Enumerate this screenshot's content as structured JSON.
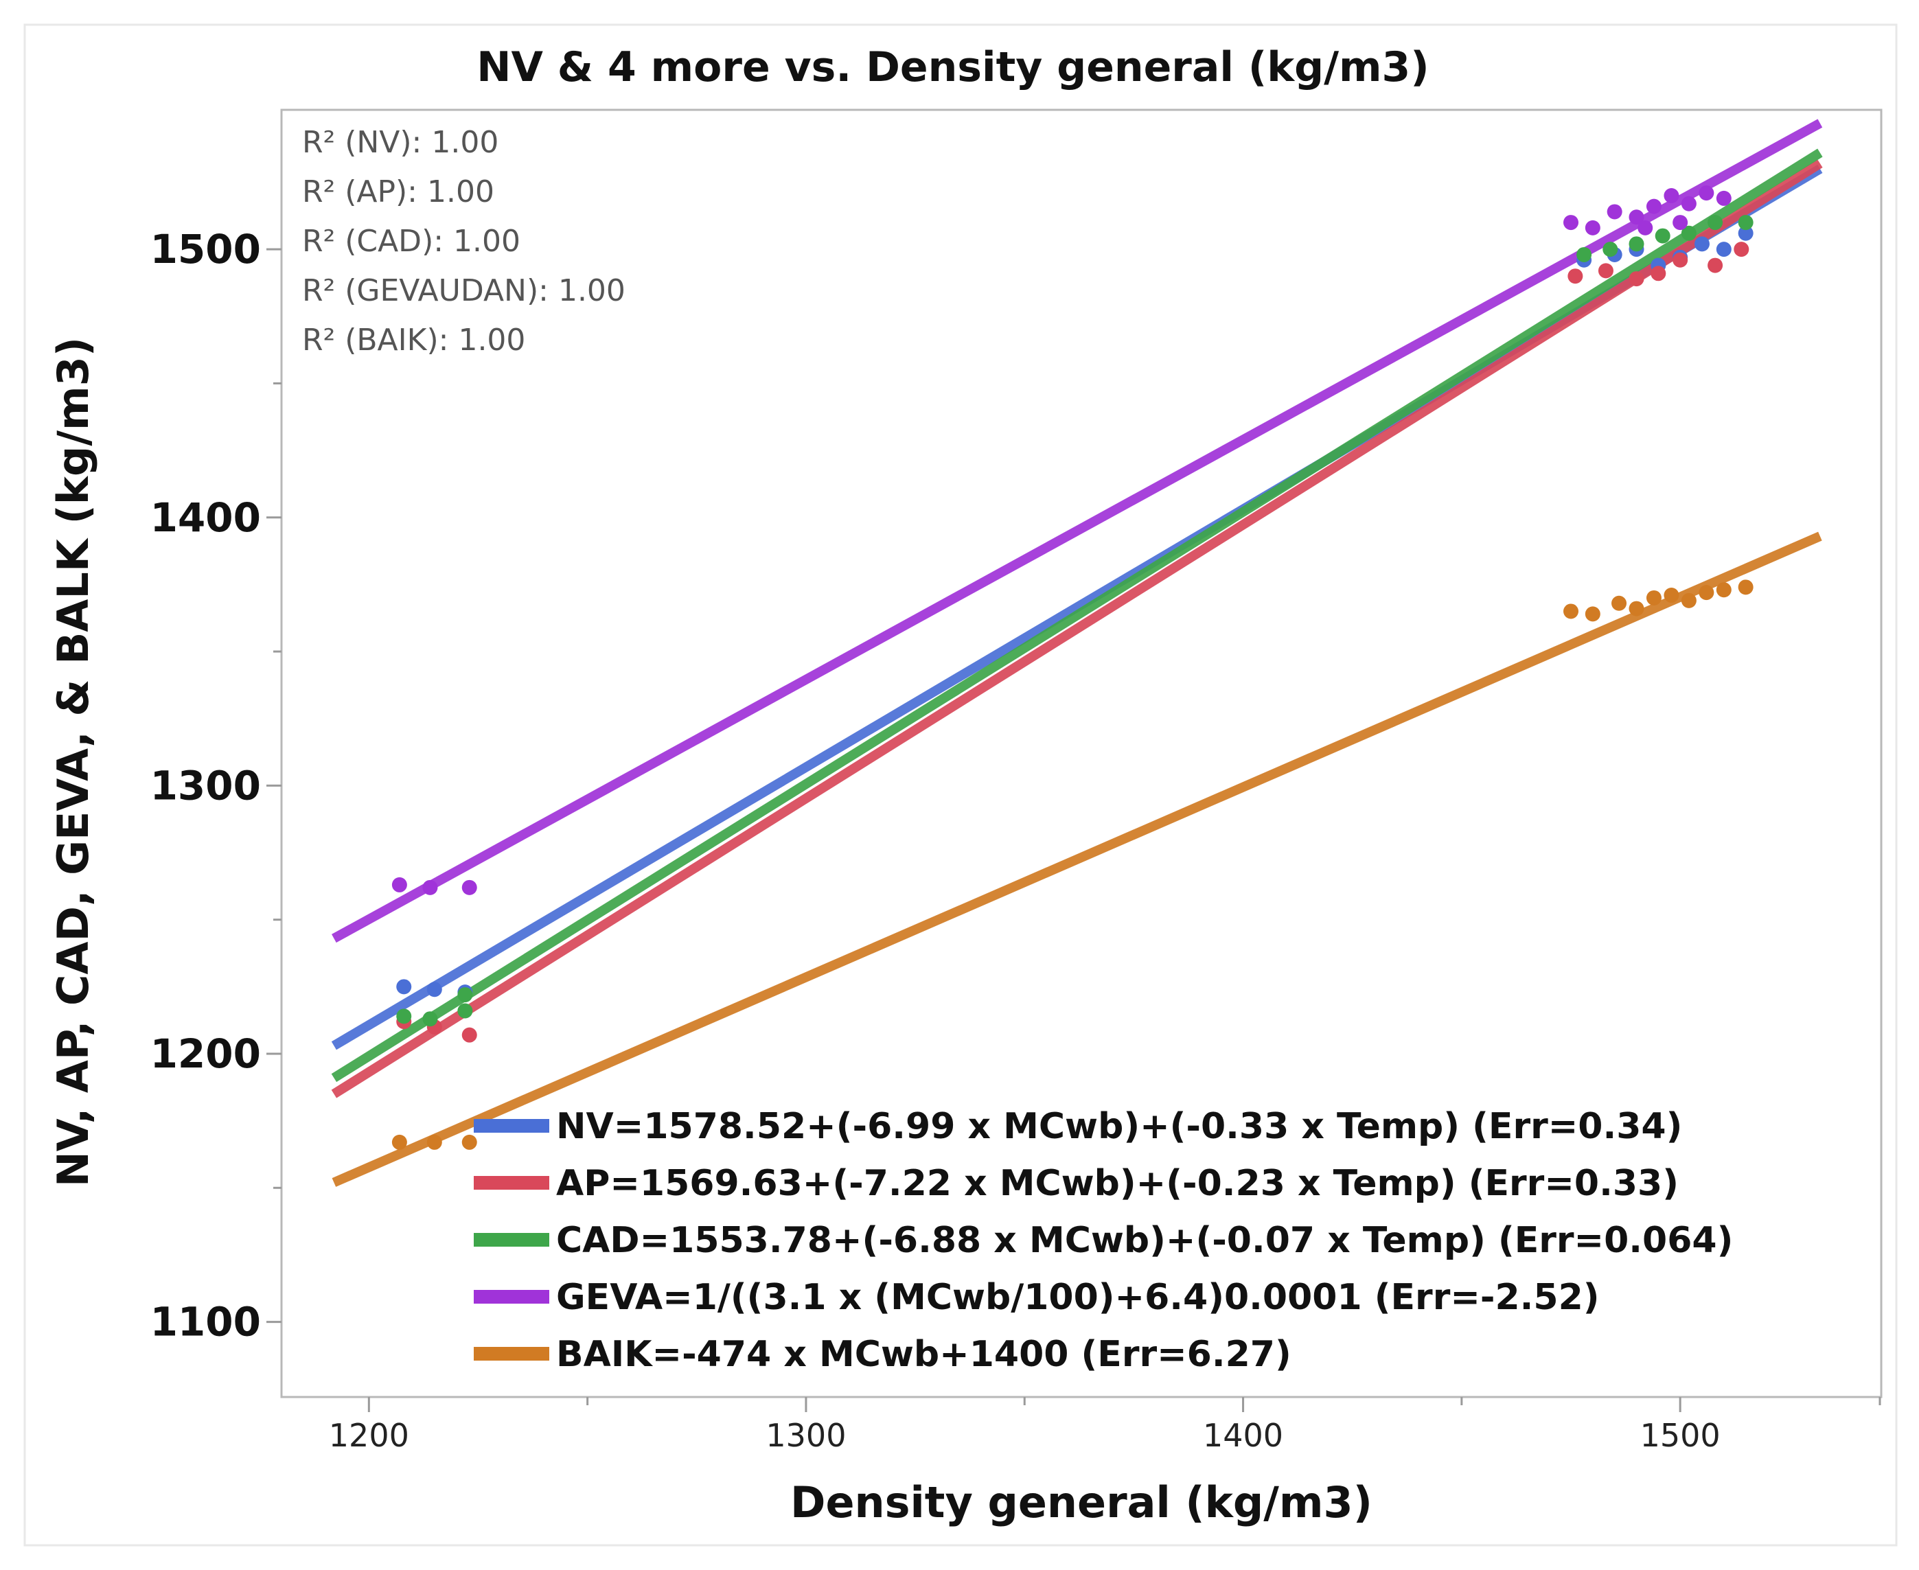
{
  "chart_data": {
    "type": "scatter",
    "title": "NV & 4 more vs. Density general (kg/m3)",
    "xlabel": "Density general (kg/m3)",
    "ylabel": "NV, AP, CAD, GEVA, & BALK (kg/m3)",
    "xlim": [
      1180,
      1546
    ],
    "ylim": [
      1072,
      1552
    ],
    "xticks": [
      1200,
      1300,
      1400,
      1500
    ],
    "yticks": [
      1100,
      1200,
      1300,
      1400,
      1500
    ],
    "x_minor_ticks": [
      1250,
      1350,
      1450,
      1546
    ],
    "y_minor_ticks": [
      1150,
      1250,
      1350,
      1450
    ],
    "r_squared": [
      {
        "label": "R² (NV): 1.00"
      },
      {
        "label": "R² (AP): 1.00"
      },
      {
        "label": "R² (CAD): 1.00"
      },
      {
        "label": "R² (GEVAUDAN): 1.00"
      },
      {
        "label": "R² (BAIK): 1.00"
      }
    ],
    "legend_position": "bottom-right inside",
    "series": [
      {
        "name": "NV",
        "legend": "NV=1578.52+(-6.99 x MCwb)+(-0.33 x Temp) (Err=0.34)",
        "color": "#4a6fd6",
        "fit": [
          [
            1192,
            1203
          ],
          [
            1532,
            1530
          ]
        ],
        "points": [
          [
            1208,
            1225
          ],
          [
            1215,
            1224
          ],
          [
            1222,
            1223
          ],
          [
            1478,
            1496
          ],
          [
            1485,
            1498
          ],
          [
            1490,
            1500
          ],
          [
            1495,
            1494
          ],
          [
            1500,
            1497
          ],
          [
            1505,
            1502
          ],
          [
            1510,
            1500
          ],
          [
            1515,
            1506
          ]
        ]
      },
      {
        "name": "AP",
        "legend": "AP=1569.63+(-7.22 x MCwb)+(-0.23 x Temp) (Err=0.33)",
        "color": "#d9485a",
        "fit": [
          [
            1192,
            1185
          ],
          [
            1532,
            1532
          ]
        ],
        "points": [
          [
            1208,
            1212
          ],
          [
            1215,
            1210
          ],
          [
            1223,
            1207
          ],
          [
            1476,
            1490
          ],
          [
            1483,
            1492
          ],
          [
            1490,
            1489
          ],
          [
            1495,
            1491
          ],
          [
            1500,
            1496
          ],
          [
            1508,
            1494
          ],
          [
            1514,
            1500
          ]
        ]
      },
      {
        "name": "CAD",
        "legend": "CAD=1553.78+(-6.88 x MCwb)+(-0.07 x Temp) (Err=0.064)",
        "color": "#3ea64a",
        "fit": [
          [
            1192,
            1191
          ],
          [
            1532,
            1536
          ]
        ],
        "points": [
          [
            1208,
            1214
          ],
          [
            1214,
            1213
          ],
          [
            1222,
            1216
          ],
          [
            1222,
            1222
          ],
          [
            1478,
            1498
          ],
          [
            1484,
            1500
          ],
          [
            1490,
            1502
          ],
          [
            1496,
            1505
          ],
          [
            1502,
            1506
          ],
          [
            1508,
            1510
          ],
          [
            1515,
            1510
          ]
        ]
      },
      {
        "name": "GEVA",
        "legend": "GEVA=1/((3.1 x (MCwb/100)+6.4)0.0001 (Err=-2.52)",
        "color": "#a033d9",
        "fit": [
          [
            1192,
            1243
          ],
          [
            1532,
            1547
          ]
        ],
        "points": [
          [
            1207,
            1263
          ],
          [
            1214,
            1262
          ],
          [
            1223,
            1262
          ],
          [
            1475,
            1510
          ],
          [
            1480,
            1508
          ],
          [
            1485,
            1514
          ],
          [
            1490,
            1512
          ],
          [
            1494,
            1516
          ],
          [
            1498,
            1520
          ],
          [
            1502,
            1517
          ],
          [
            1506,
            1521
          ],
          [
            1510,
            1519
          ],
          [
            1492,
            1508
          ],
          [
            1500,
            1510
          ]
        ]
      },
      {
        "name": "BAIK",
        "legend": "BAIK=-474 x MCwb+1400 (Err=6.27)",
        "color": "#d17b23",
        "fit": [
          [
            1192,
            1152
          ],
          [
            1532,
            1393
          ]
        ],
        "points": [
          [
            1207,
            1167
          ],
          [
            1215,
            1167
          ],
          [
            1223,
            1167
          ],
          [
            1475,
            1365
          ],
          [
            1480,
            1364
          ],
          [
            1486,
            1368
          ],
          [
            1490,
            1366
          ],
          [
            1494,
            1370
          ],
          [
            1498,
            1371
          ],
          [
            1502,
            1369
          ],
          [
            1506,
            1372
          ],
          [
            1510,
            1373
          ],
          [
            1515,
            1374
          ]
        ]
      }
    ]
  }
}
